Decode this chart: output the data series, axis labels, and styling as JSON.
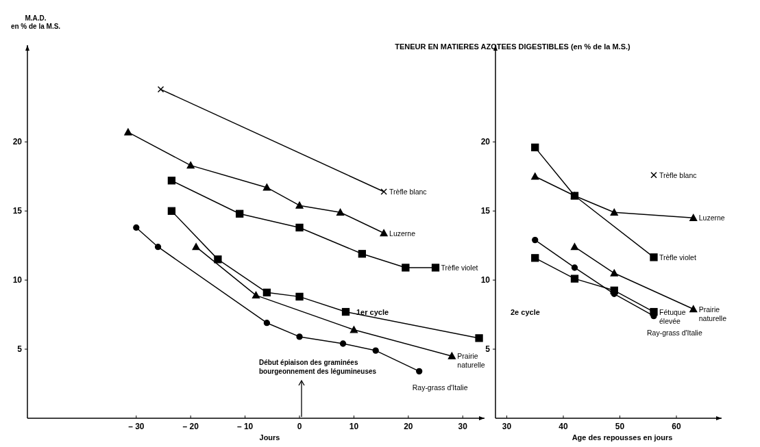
{
  "chart_data": [
    {
      "type": "line",
      "title": "TENEUR EN MATIERES AZOTEES DIGESTIBLES (en % de la M.S.)",
      "ylabel": "M.A.D. en % de la M.S.",
      "xlabel": "Jours",
      "xlim": [
        -50,
        34
      ],
      "ylim": [
        0,
        27
      ],
      "xticks": [
        {
          "value": -30,
          "label": "– 30"
        },
        {
          "value": -20,
          "label": "– 20"
        },
        {
          "value": -10,
          "label": "– 10"
        },
        0,
        10,
        20,
        30
      ],
      "yticks": [
        5,
        10,
        15,
        20
      ],
      "grid": false,
      "series": [
        {
          "name": "Trèfle blanc",
          "color": "#000000",
          "marker": "cross",
          "x": [
            -25.5,
            15.5
          ],
          "values": [
            23.8,
            16.4
          ]
        },
        {
          "name": "Luzerne",
          "color": "#000000",
          "marker": "triangle",
          "x": [
            -31.5,
            -20,
            -6,
            0,
            7.5,
            15.5
          ],
          "values": [
            20.7,
            18.3,
            16.7,
            15.4,
            14.9,
            13.4
          ]
        },
        {
          "name": "Trèfle violet",
          "color": "#000000",
          "marker": "square",
          "x": [
            -23.5,
            -11,
            0,
            11.5,
            19.5,
            25
          ],
          "values": [
            17.2,
            14.8,
            13.8,
            11.9,
            10.9,
            10.9
          ]
        },
        {
          "color": "#000000",
          "marker": "square",
          "x": [
            -23.5,
            -15,
            -6,
            0,
            8.5,
            33
          ],
          "values": [
            15,
            11.5,
            9.1,
            8.8,
            7.7,
            5.8
          ]
        },
        {
          "name": "Prairie naturelle",
          "color": "#000000",
          "marker": "triangle",
          "x": [
            -19,
            -8,
            10,
            28
          ],
          "values": [
            12.4,
            8.9,
            6.4,
            4.5
          ]
        },
        {
          "name": "Ray-grass d'Italie",
          "color": "#000000",
          "marker": "circle",
          "x": [
            -30,
            -26,
            -6,
            0,
            8,
            14,
            22
          ],
          "values": [
            13.8,
            12.4,
            6.9,
            5.9,
            5.4,
            4.9,
            3.4
          ]
        }
      ],
      "annotations": [
        "1er cycle",
        "Début épiaison des graminées bourgeonnement des légumineuses"
      ]
    },
    {
      "type": "line",
      "xlabel": "Age des repousses en jours",
      "xlim": [
        28,
        68
      ],
      "ylim": [
        0,
        27
      ],
      "xticks": [
        30,
        40,
        50,
        60
      ],
      "yticks": [
        5,
        10,
        15,
        20
      ],
      "grid": false,
      "series": [
        {
          "name": "Trèfle blanc",
          "color": "#000000",
          "marker": "cross",
          "x": [
            56
          ],
          "values": [
            17.6
          ]
        },
        {
          "name": "Luzerne",
          "color": "#000000",
          "marker": "triangle",
          "x": [
            35,
            42,
            49,
            63
          ],
          "values": [
            17.5,
            16.1,
            14.9,
            14.5
          ]
        },
        {
          "name": "Trèfle violet",
          "color": "#000000",
          "marker": "square",
          "x": [
            35,
            42,
            56
          ],
          "values": [
            19.6,
            16.1,
            11.65
          ]
        },
        {
          "name": "Fétuque élevée",
          "color": "#000000",
          "marker": "square",
          "x": [
            35,
            42,
            49,
            56
          ],
          "values": [
            11.6,
            10.1,
            9.25,
            7.7
          ]
        },
        {
          "name": "Prairie naturelle",
          "color": "#000000",
          "marker": "triangle",
          "x": [
            42,
            49,
            63
          ],
          "values": [
            12.4,
            10.5,
            7.9
          ]
        },
        {
          "name": "Ray-grass d'Italie",
          "color": "#000000",
          "marker": "circle",
          "x": [
            35,
            42,
            49,
            56
          ],
          "values": [
            12.9,
            10.9,
            9,
            7.4
          ]
        }
      ],
      "annotations": [
        "2e cycle"
      ]
    }
  ]
}
